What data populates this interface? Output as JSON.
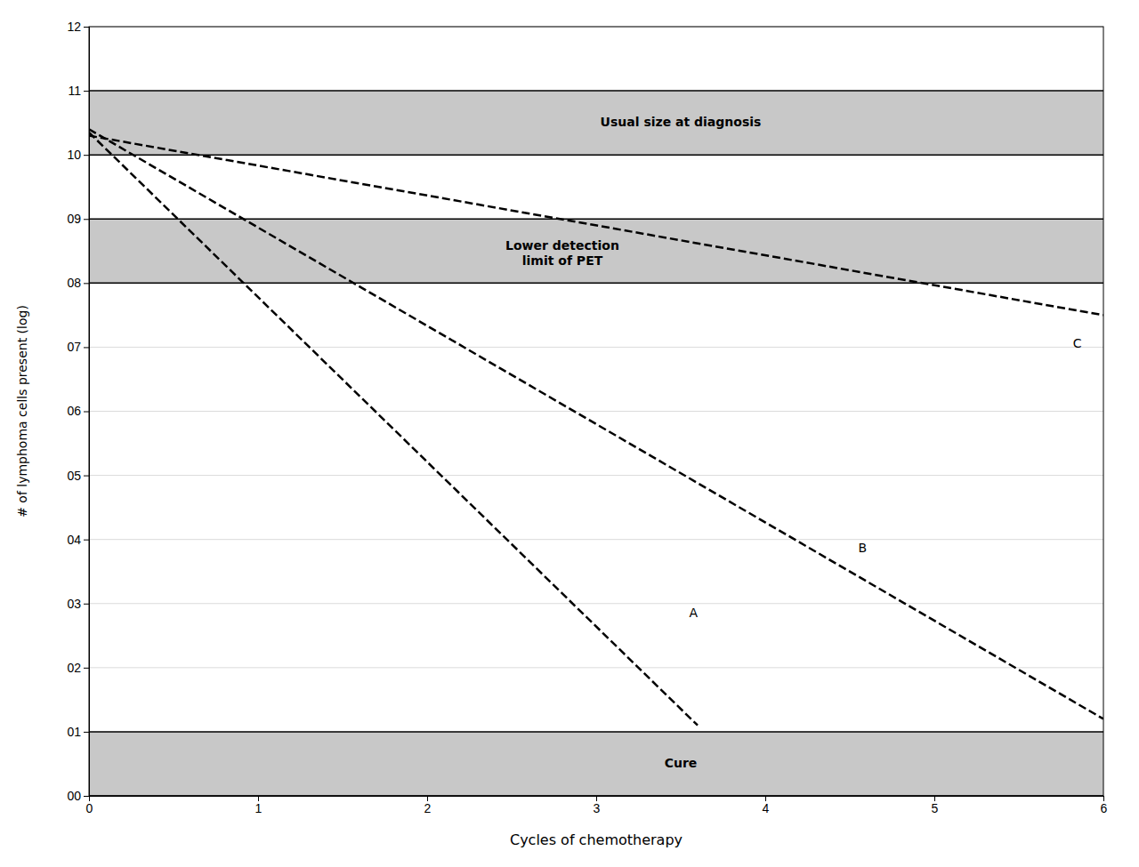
{
  "chart_data": {
    "type": "line",
    "xlabel": "Cycles of chemotherapy",
    "ylabel": "# of lymphoma cells present (log)",
    "xlim": [
      0,
      6
    ],
    "ylim": [
      0,
      12
    ],
    "xticks": [
      0,
      1,
      2,
      3,
      4,
      5,
      6
    ],
    "yticks": [
      {
        "value": 0,
        "label": "00"
      },
      {
        "value": 1,
        "label": "01"
      },
      {
        "value": 2,
        "label": "02"
      },
      {
        "value": 3,
        "label": "03"
      },
      {
        "value": 4,
        "label": "04"
      },
      {
        "value": 5,
        "label": "05"
      },
      {
        "value": 6,
        "label": "06"
      },
      {
        "value": 7,
        "label": "07"
      },
      {
        "value": 8,
        "label": "08"
      },
      {
        "value": 9,
        "label": "09"
      },
      10,
      11,
      12
    ],
    "grid": true,
    "band_color": "#c8c8c8",
    "bands": [
      {
        "ymin": 10,
        "ymax": 11,
        "label": "Usual size at diagnosis",
        "label_x": 3.5,
        "label_y": 10.5
      },
      {
        "ymin": 8,
        "ymax": 9,
        "label": "Lower detection\nlimit of PET",
        "label_x": 2.8,
        "label_y": 8.45
      },
      {
        "ymin": 0,
        "ymax": 1,
        "label": "Cure",
        "label_x": 3.5,
        "label_y": 0.5
      }
    ],
    "series": [
      {
        "name": "C",
        "color": "#000000",
        "line_style": "dashed",
        "x": [
          0,
          6
        ],
        "values": [
          10.3,
          7.5
        ],
        "label_x": 5.82,
        "label_y": 7.05
      },
      {
        "name": "B",
        "color": "#000000",
        "line_style": "dashed",
        "x": [
          0,
          6
        ],
        "values": [
          10.4,
          1.2
        ],
        "label_x": 4.55,
        "label_y": 3.85
      },
      {
        "name": "A",
        "color": "#000000",
        "line_style": "dashed",
        "x": [
          0,
          3.6
        ],
        "values": [
          10.35,
          1.1
        ],
        "label_x": 3.55,
        "label_y": 2.85
      }
    ]
  }
}
